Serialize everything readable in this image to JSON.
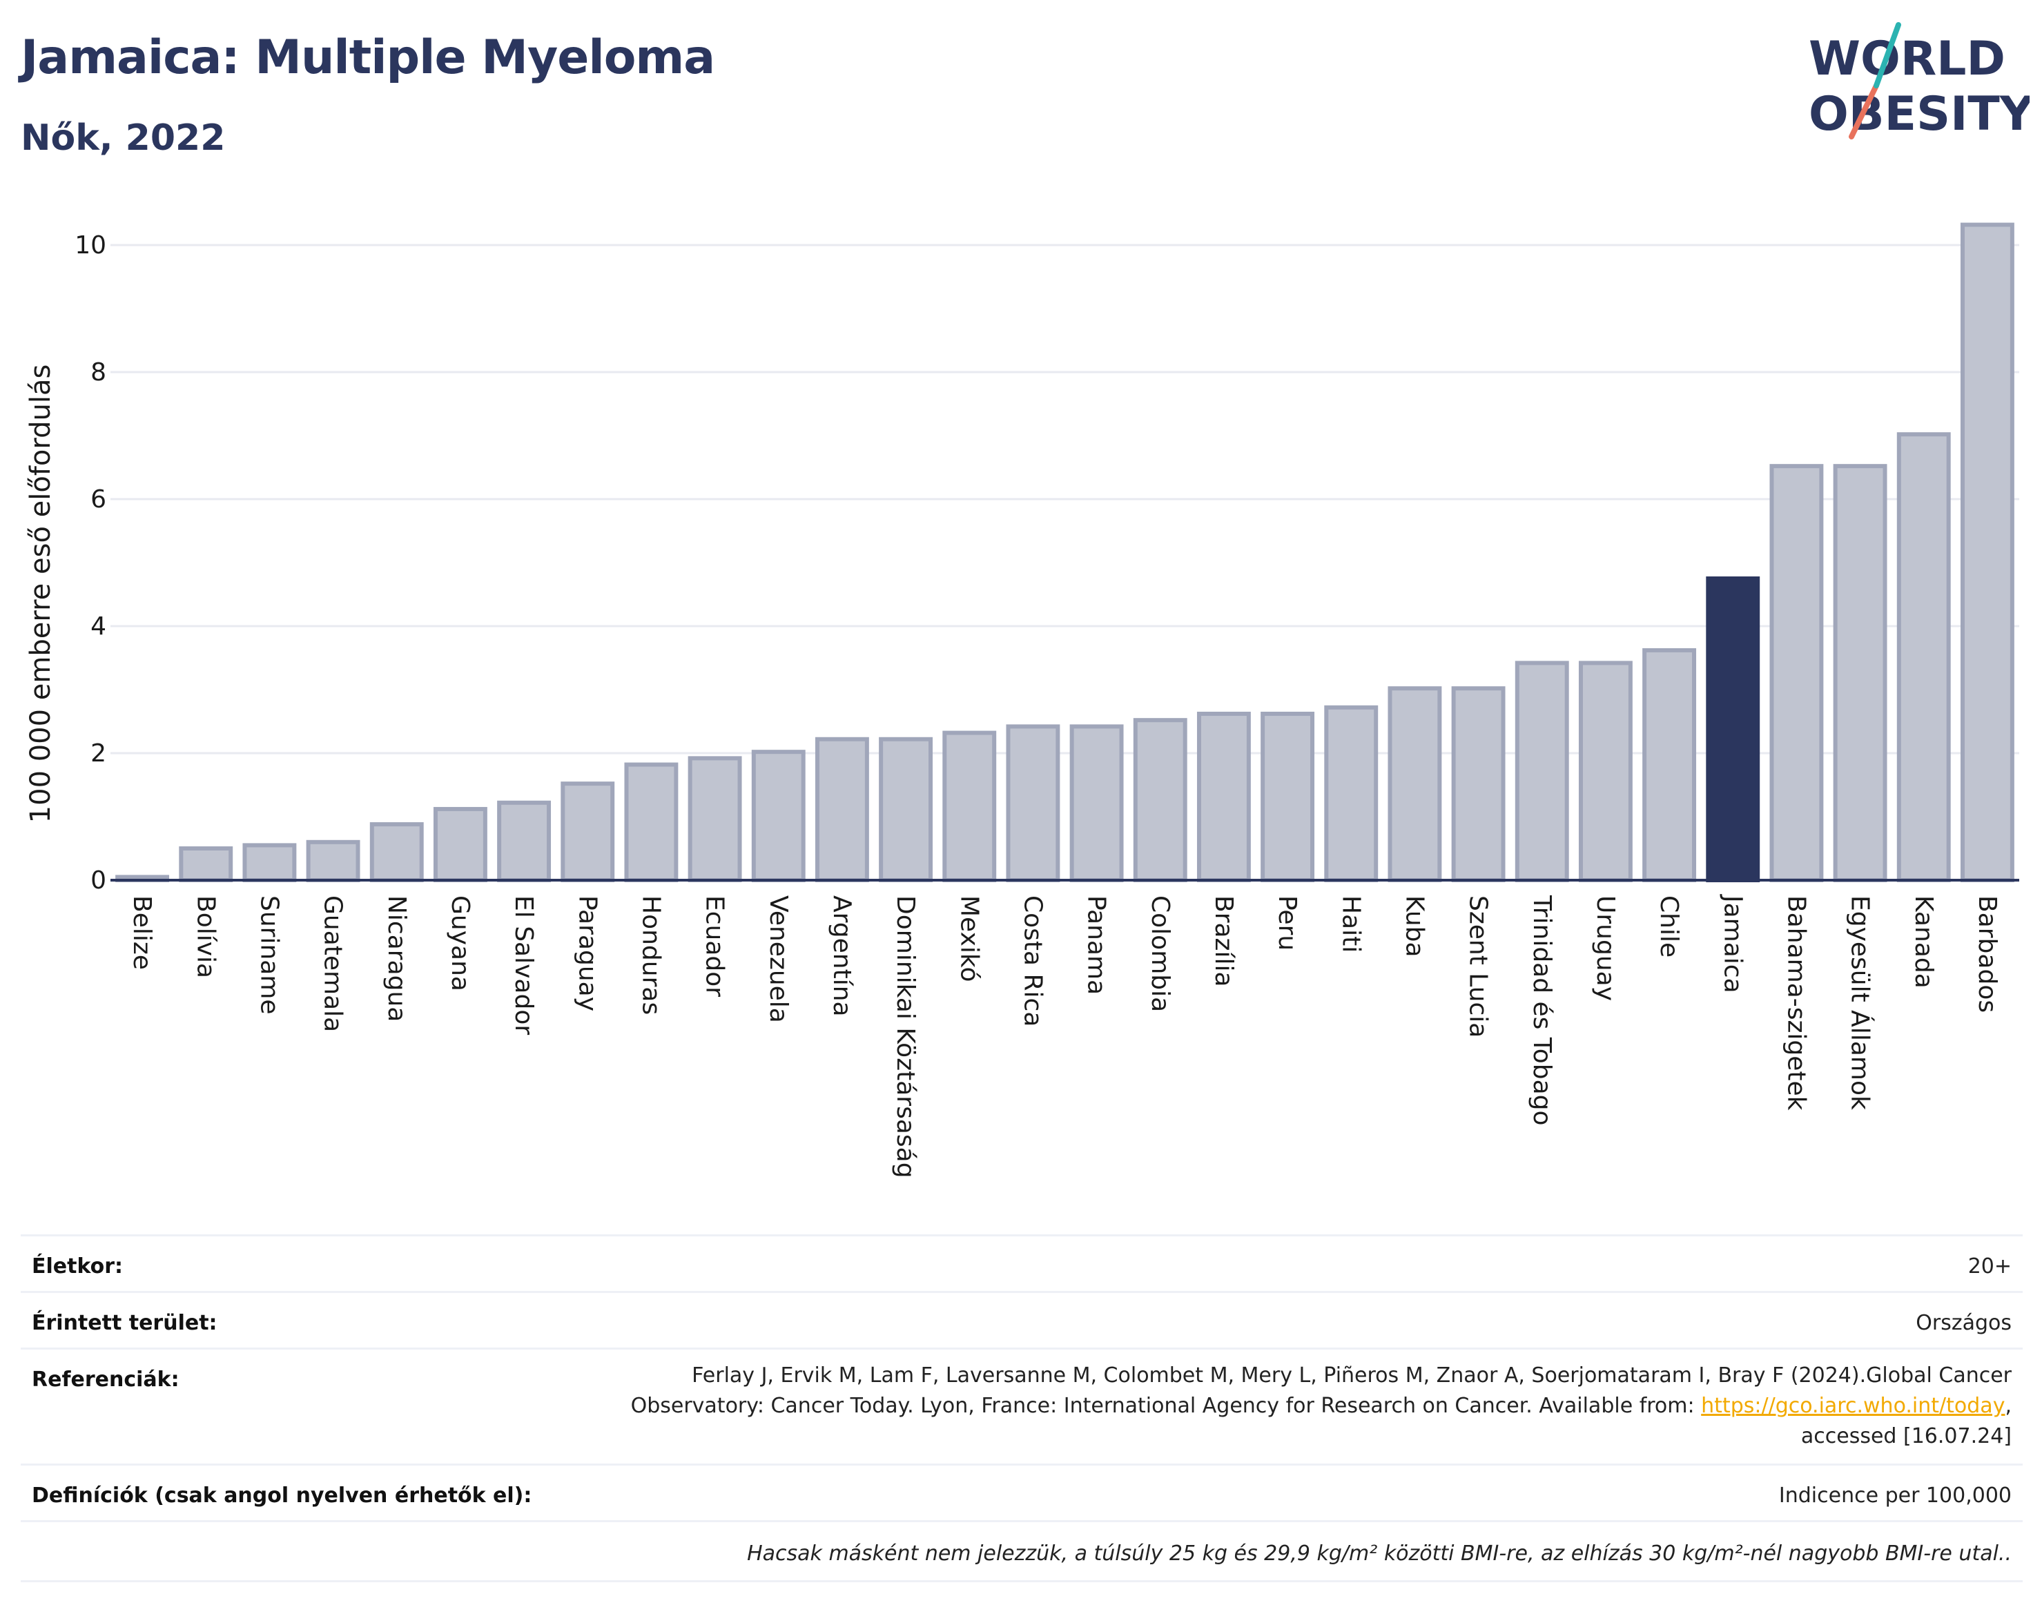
{
  "header": {
    "title": "Jamaica: Multiple Myeloma",
    "subtitle": "Nők, 2022",
    "logo_line1": "WORLD",
    "logo_line2": "OBESITY"
  },
  "colors": {
    "title": "#2b365e",
    "bar": "#c0c4d0",
    "bar_stroke": "#a0a6ba",
    "highlight": "#2b365e",
    "grid": "#e8eaf0",
    "logo_teal": "#2bb3b1",
    "logo_coral": "#e8725c"
  },
  "chart_data": {
    "type": "bar",
    "ylabel": "100 000 emberre eső előfordulás",
    "ylim": [
      0,
      10.5
    ],
    "yticks": [
      0,
      2,
      4,
      6,
      8,
      10
    ],
    "grid": true,
    "highlight": "Jamaica",
    "categories": [
      "Belize",
      "Bolívia",
      "Suriname",
      "Guatemala",
      "Nicaragua",
      "Guyana",
      "El Salvador",
      "Paraguay",
      "Honduras",
      "Ecuador",
      "Venezuela",
      "Argentína",
      "Dominikai Köztársaság",
      "Mexikó",
      "Costa Rica",
      "Panama",
      "Colombia",
      "Brazília",
      "Peru",
      "Haiti",
      "Kuba",
      "Szent Lucia",
      "Trinidad és Tobago",
      "Uruguay",
      "Chile",
      "Jamaica",
      "Bahama-szigetek",
      "Egyesült Államok",
      "Kanada",
      "Barbados"
    ],
    "values": [
      0.05,
      0.5,
      0.55,
      0.6,
      0.88,
      1.12,
      1.22,
      1.52,
      1.82,
      1.92,
      2.02,
      2.22,
      2.22,
      2.32,
      2.42,
      2.42,
      2.52,
      2.62,
      2.62,
      2.72,
      3.02,
      3.02,
      3.42,
      3.42,
      3.62,
      4.75,
      6.52,
      6.52,
      7.02,
      10.32
    ]
  },
  "meta": {
    "age_label": "Életkor:",
    "age_value": "20+",
    "area_label": "Érintett terület:",
    "area_value": "Országos",
    "ref_label": "Referenciák:",
    "ref_line1": "Ferlay J, Ervik M, Lam F, Laversanne M, Colombet M, Mery L, Piñeros M, Znaor A, Soerjomataram I, Bray F (2024).Global Cancer",
    "ref_line2_pre": "Observatory: Cancer Today. Lyon, France: International Agency for Research on Cancer. Available from: ",
    "ref_link": "https://gco.iarc.who.int/today",
    "ref_line2_post": ",",
    "ref_line3": "accessed [16.07.24]",
    "def_label": "Definíciók (csak angol nyelven érhetők el):",
    "def_value": "Indicence per 100,000",
    "note": "Hacsak másként nem jelezzük, a túlsúly 25 kg és 29,9 kg/m² közötti BMI-re, az elhízás 30 kg/m²-nél nagyobb BMI-re utal.."
  }
}
